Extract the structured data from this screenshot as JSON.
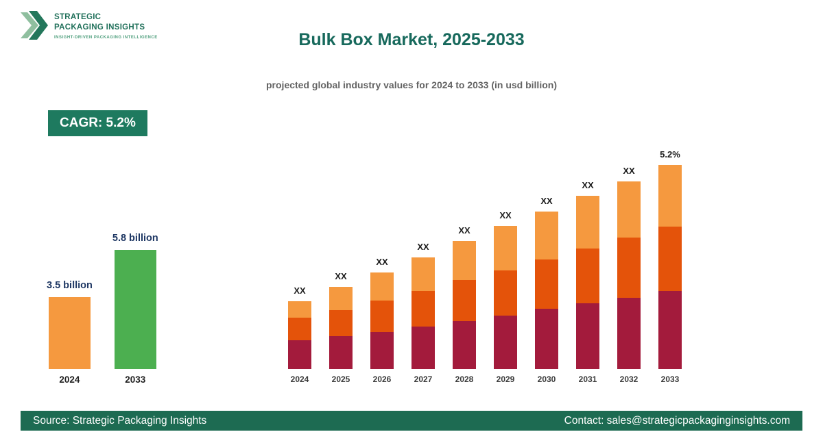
{
  "brand": {
    "name_line1": "STRATEGIC",
    "name_line2": "PACKAGING INSIGHTS",
    "tagline": "INSIGHT-DRIVEN PACKAGING INTELLIGENCE"
  },
  "header": {
    "title": "Bulk Box Market, 2025-2033",
    "subtitle": "projected global industry values for 2024 to 2033 (in usd billion)",
    "title_color": "#17695c"
  },
  "badge": {
    "label": "CAGR: 5.2%",
    "bg": "#1e7a5f"
  },
  "chart_data": [
    {
      "type": "bar",
      "id": "highlight_comparison",
      "categories": [
        "2024",
        "2033"
      ],
      "values": [
        3.5,
        5.8
      ],
      "value_labels": [
        "3.5 billion",
        "5.8 billion"
      ],
      "bar_colors": [
        "#f5993f",
        "#4caf50"
      ],
      "unit": "usd billion",
      "grid": false,
      "legend": "none"
    },
    {
      "type": "bar",
      "id": "stacked_projection",
      "stacked": true,
      "categories": [
        "2024",
        "2025",
        "2026",
        "2027",
        "2028",
        "2029",
        "2030",
        "2031",
        "2032",
        "2033"
      ],
      "series": [
        {
          "name": "segment-bottom",
          "color": "#a31b3c",
          "values": [
            42,
            48,
            54,
            62,
            70,
            78,
            88,
            96,
            104,
            114
          ]
        },
        {
          "name": "segment-middle",
          "color": "#e4530a",
          "values": [
            33,
            38,
            46,
            52,
            60,
            66,
            72,
            80,
            88,
            94
          ]
        },
        {
          "name": "segment-top",
          "color": "#f5993f",
          "values": [
            24,
            34,
            41,
            49,
            57,
            65,
            70,
            77,
            82,
            90
          ]
        }
      ],
      "bar_labels": [
        "XX",
        "XX",
        "XX",
        "XX",
        "XX",
        "XX",
        "XX",
        "XX",
        "XX",
        "5.2%"
      ],
      "note": "bar values displayed as XX placeholders on the chart; series values are relative height estimates",
      "grid": false,
      "legend": "none"
    }
  ],
  "footer": {
    "source": "Source: Strategic Packaging Insights",
    "contact": "Contact: sales@strategicpackaginginsights.com",
    "bg": "#1d6b52"
  }
}
